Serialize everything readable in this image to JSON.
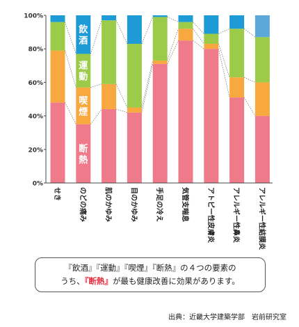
{
  "chart_data": {
    "type": "bar",
    "stacked": true,
    "categories": [
      "せき",
      "のどの痛み",
      "肌のかゆみ",
      "目のかゆみ",
      "手足の冷え",
      "気管支喘息",
      "アトピー性皮膚炎",
      "アレルギー性鼻炎",
      "アレルギー性結膜炎"
    ],
    "series": [
      {
        "name": "断熱",
        "color": "#ef7b8a",
        "values": [
          48,
          35,
          44,
          42,
          71,
          85,
          80,
          51,
          40
        ]
      },
      {
        "name": "喫煙",
        "color": "#f7a83f",
        "values": [
          31,
          22,
          15,
          3,
          2,
          7,
          3,
          12,
          20
        ]
      },
      {
        "name": "運動",
        "color": "#9bcb49",
        "values": [
          17,
          20,
          38,
          38,
          26,
          4,
          6,
          29,
          27
        ]
      },
      {
        "name": "飲酒",
        "color": "#1e9bd7",
        "values": [
          4,
          23,
          3,
          17,
          1,
          4,
          11,
          8,
          13
        ]
      }
    ],
    "last_bar_top_color": "#5aa9d8",
    "y_ticks": [
      "0%",
      "20%",
      "40%",
      "60%",
      "80%",
      "100%"
    ],
    "ylim": [
      0,
      100
    ],
    "grid": false
  },
  "note": {
    "line1": "『飲酒』『運動』『喫煙』『断熱』の４つの要素の",
    "line2_pre": "うち、",
    "line2_highlight": "『断熱』",
    "line2_post": "が最も健康改善に効果があります。"
  },
  "source": "出典：近畿大学建築学部　岩前研究室"
}
